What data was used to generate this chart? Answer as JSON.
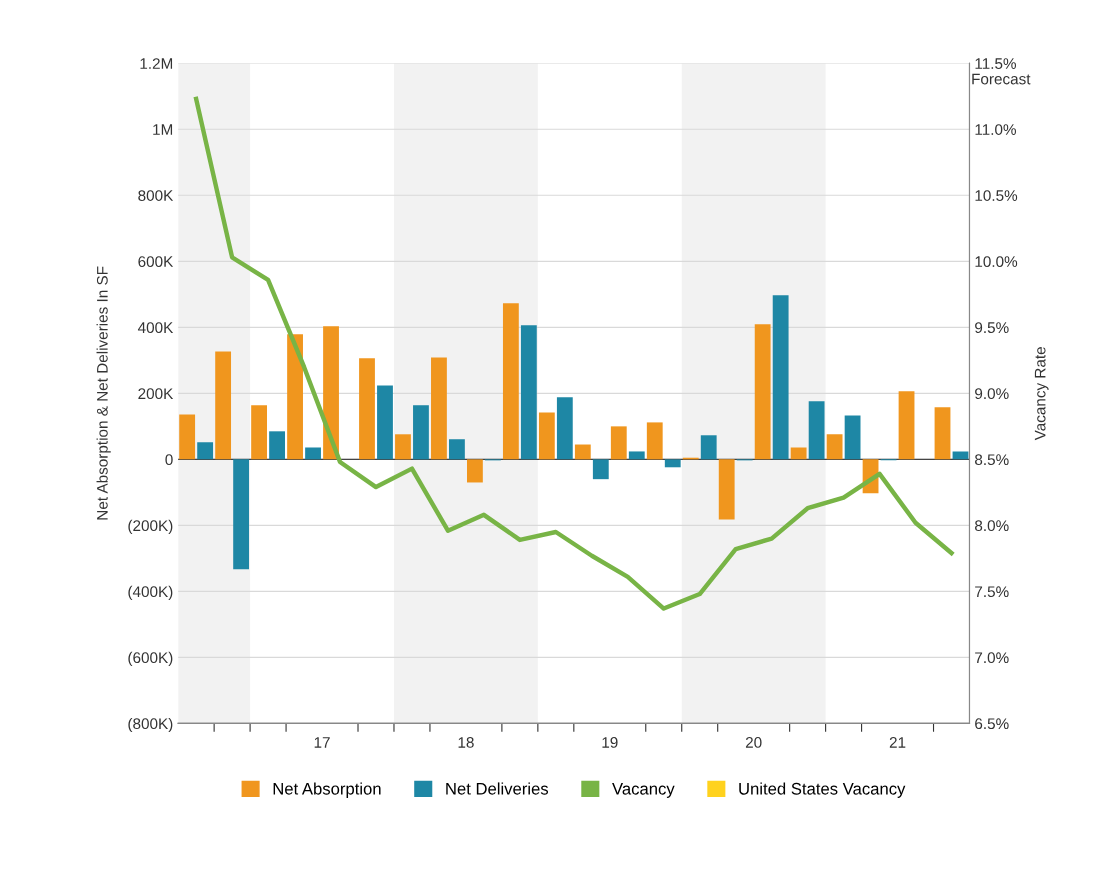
{
  "chart_data": {
    "type": "bar",
    "ylabel": "Net Absorption & Net Deliveries In SF",
    "y2label": "Vacancy Rate",
    "x": [
      16.125,
      16.375,
      16.625,
      16.875,
      17.125,
      17.375,
      17.625,
      17.875,
      18.125,
      18.375,
      18.625,
      18.875,
      19.125,
      19.375,
      19.625,
      19.875,
      20.125,
      20.375,
      20.625,
      20.875,
      21.125,
      21.375
    ],
    "series": [
      {
        "name": "Net Absorption",
        "color": "#f0961e",
        "values": [
          136000,
          327000,
          164000,
          379000,
          403000,
          306000,
          76000,
          309000,
          -70000,
          473000,
          142000,
          45000,
          100000,
          112000,
          5000,
          -182000,
          409000,
          36000,
          76000,
          -103000,
          206000,
          158000
        ]
      },
      {
        "name": "Net Deliveries",
        "color": "#1e87a5",
        "values": [
          52000,
          -333000,
          85000,
          36000,
          0,
          224000,
          164000,
          61000,
          -3000,
          406000,
          188000,
          -60000,
          24000,
          -24000,
          73000,
          -3000,
          497000,
          176000,
          133000,
          -3000,
          0,
          24000
        ]
      },
      {
        "name": "Vacancy",
        "type": "line",
        "axis": "y2",
        "color": "#78b446",
        "values": [
          11.23,
          10.03,
          9.86,
          9.2,
          8.48,
          8.29,
          8.43,
          7.96,
          8.08,
          7.89,
          7.95,
          7.77,
          7.61,
          7.37,
          7.48,
          7.82,
          7.9,
          8.13,
          8.21,
          8.39,
          8.02,
          7.79
        ]
      },
      {
        "name": "United States Vacancy",
        "type": "line",
        "axis": "y2",
        "color": "#ffd21e",
        "values": [
          null,
          null,
          null,
          null,
          null,
          null,
          null,
          null,
          null,
          null,
          null,
          null,
          null,
          null,
          null,
          null,
          null,
          null,
          null,
          null,
          null,
          null
        ]
      }
    ],
    "xlim": [
      16,
      21.5
    ],
    "xticks": [
      {
        "value": 16.25,
        "label": null
      },
      {
        "value": 16.5,
        "label": null
      },
      {
        "value": 16.75,
        "label": null
      },
      17,
      {
        "value": 17.25,
        "label": null
      },
      {
        "value": 17.5,
        "label": null
      },
      {
        "value": 17.75,
        "label": null
      },
      18,
      {
        "value": 18.25,
        "label": null
      },
      {
        "value": 18.5,
        "label": null
      },
      {
        "value": 18.75,
        "label": null
      },
      19,
      {
        "value": 19.25,
        "label": null
      },
      {
        "value": 19.5,
        "label": null
      },
      {
        "value": 19.75,
        "label": null
      },
      20,
      {
        "value": 20.25,
        "label": null
      },
      {
        "value": 20.5,
        "label": null
      },
      {
        "value": 20.75,
        "label": null
      },
      21,
      {
        "value": 21.25,
        "label": null
      }
    ],
    "ylim": [
      -800000,
      1200000
    ],
    "yticks": [
      {
        "value": -800000,
        "label": "(800K)"
      },
      {
        "value": -600000,
        "label": "(600K)"
      },
      {
        "value": -400000,
        "label": "(400K)"
      },
      {
        "value": -200000,
        "label": "(200K)"
      },
      {
        "value": 0,
        "label": "0"
      },
      {
        "value": 200000,
        "label": "200K"
      },
      {
        "value": 400000,
        "label": "400K"
      },
      {
        "value": 600000,
        "label": "600K"
      },
      {
        "value": 800000,
        "label": "800K"
      },
      {
        "value": 1000000,
        "label": "1M"
      },
      {
        "value": 1200000,
        "label": "1.2M"
      }
    ],
    "y2lim": [
      6.5,
      11.5
    ],
    "y2ticks": [
      {
        "value": 6.5,
        "label": "6.5%"
      },
      {
        "value": 7,
        "label": "7.0%"
      },
      {
        "value": 7.5,
        "label": "7.5%"
      },
      {
        "value": 8,
        "label": "8.0%"
      },
      {
        "value": 8.5,
        "label": "8.5%"
      },
      {
        "value": 9,
        "label": "9.0%"
      },
      {
        "value": 9.5,
        "label": "9.5%"
      },
      {
        "value": 10,
        "label": "10.0%"
      },
      {
        "value": 10.5,
        "label": "10.5%"
      },
      {
        "value": 11,
        "label": "11.0%"
      },
      {
        "value": 11.5,
        "label": "11.5%"
      }
    ],
    "bands": [
      {
        "axis": "x",
        "from": 16,
        "to": 16.5,
        "color": "#f2f2f2"
      },
      {
        "axis": "x",
        "from": 17.5,
        "to": 18.5,
        "color": "#f2f2f2"
      },
      {
        "axis": "x",
        "from": 19.5,
        "to": 20.5,
        "color": "#f2f2f2"
      }
    ],
    "annotations": [
      "Forecast"
    ],
    "grid": "y",
    "legend": "bottom",
    "marker": "none",
    "line_style": "solid"
  }
}
